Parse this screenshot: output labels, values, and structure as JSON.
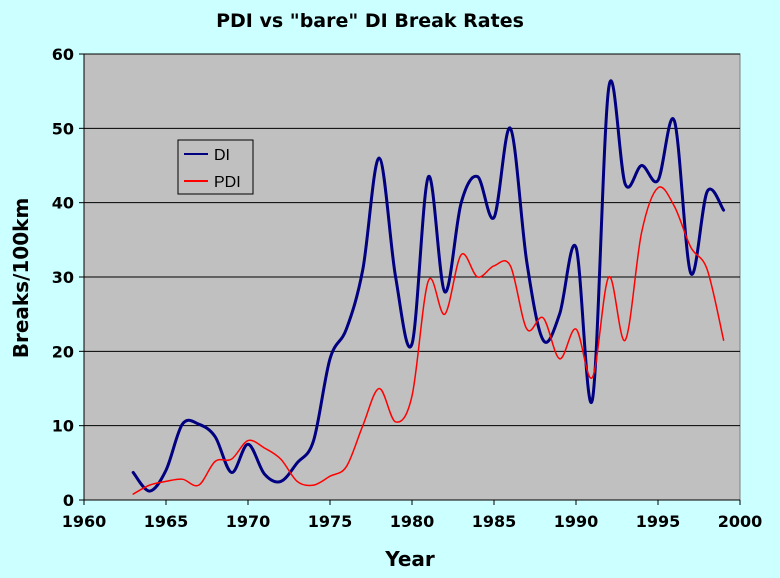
{
  "chart_data": {
    "type": "line",
    "title": "PDI vs \"bare\" DI Break Rates",
    "xlabel": "Year",
    "ylabel": "Breaks/100km",
    "xlim": [
      1960,
      2000
    ],
    "ylim": [
      0,
      60
    ],
    "x_ticks": [
      "1960",
      "1965",
      "1970",
      "1975",
      "1980",
      "1985",
      "1990",
      "1995",
      "2000"
    ],
    "y_ticks": [
      "0",
      "10",
      "20",
      "30",
      "40",
      "50",
      "60"
    ],
    "grid": "horizontal",
    "legend_position": "upper-left",
    "plot_background": "#c0c0c0",
    "page_background": "#ccffff",
    "series": [
      {
        "name": "DI",
        "color": "#000080",
        "x": [
          1963,
          1964,
          1965,
          1966,
          1967,
          1968,
          1969,
          1970,
          1971,
          1972,
          1973,
          1974,
          1975,
          1976,
          1977,
          1978,
          1979,
          1980,
          1981,
          1982,
          1983,
          1984,
          1985,
          1986,
          1987,
          1988,
          1989,
          1990,
          1991,
          1992,
          1993,
          1994,
          1995,
          1996,
          1997,
          1998,
          1999
        ],
        "values": [
          3.7,
          1.2,
          4.0,
          10.2,
          10.2,
          8.5,
          3.7,
          7.5,
          3.5,
          2.5,
          5.0,
          8.0,
          19.0,
          23.0,
          31.0,
          46.0,
          30.0,
          21.0,
          43.5,
          28.0,
          40.0,
          43.5,
          38.0,
          50.0,
          32.0,
          21.5,
          25.0,
          34.0,
          13.5,
          55.5,
          42.5,
          45.0,
          43.0,
          51.0,
          30.5,
          41.5,
          39.0
        ]
      },
      {
        "name": "PDI",
        "color": "#ff0000",
        "x": [
          1963,
          1964,
          1965,
          1966,
          1967,
          1968,
          1969,
          1970,
          1971,
          1972,
          1973,
          1974,
          1975,
          1976,
          1977,
          1978,
          1979,
          1980,
          1981,
          1982,
          1983,
          1984,
          1985,
          1986,
          1987,
          1988,
          1989,
          1990,
          1991,
          1992,
          1993,
          1994,
          1995,
          1996,
          1997,
          1998,
          1999
        ],
        "values": [
          0.8,
          2.0,
          2.5,
          2.8,
          2.0,
          5.2,
          5.5,
          8.0,
          7.0,
          5.5,
          2.5,
          2.0,
          3.2,
          4.5,
          10.0,
          15.0,
          10.5,
          14.0,
          29.5,
          25.0,
          33.0,
          30.0,
          31.5,
          31.5,
          23.0,
          24.5,
          19.0,
          23.0,
          16.5,
          30.0,
          21.5,
          36.0,
          42.0,
          39.5,
          34.0,
          31.0,
          21.5
        ]
      }
    ]
  }
}
